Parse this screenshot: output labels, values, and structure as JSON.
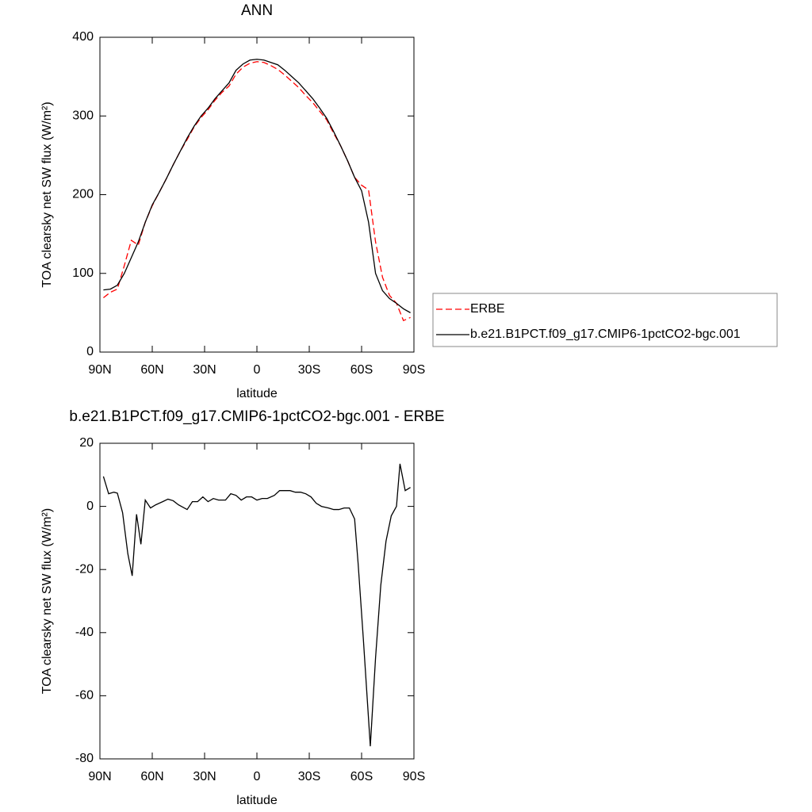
{
  "chart_data": [
    {
      "type": "line",
      "title": "ANN",
      "x_label": "latitude",
      "y_label": "TOA clearsky net SW flux (W/m²)",
      "x": [
        88,
        84,
        80,
        76,
        72,
        68,
        64,
        60,
        56,
        52,
        48,
        44,
        40,
        36,
        32,
        28,
        24,
        20,
        16,
        12,
        8,
        4,
        0,
        -4,
        -8,
        -12,
        -16,
        -20,
        -24,
        -28,
        -32,
        -36,
        -40,
        -44,
        -48,
        -52,
        -56,
        -60,
        -64,
        -68,
        -72,
        -76,
        -80,
        -84,
        -88
      ],
      "xlim": [
        90,
        -90
      ],
      "xticks": [
        {
          "value": 90,
          "label": "90N"
        },
        {
          "value": 60,
          "label": "60N"
        },
        {
          "value": 30,
          "label": "30N"
        },
        0,
        {
          "value": -30,
          "label": "30S"
        },
        {
          "value": -60,
          "label": "60S"
        },
        {
          "value": -90,
          "label": "90S"
        }
      ],
      "ylim": [
        0,
        400
      ],
      "yticks": [
        0,
        100,
        200,
        300,
        400
      ],
      "legend": "right",
      "series": [
        {
          "name": "ERBE",
          "color": "#ff0000",
          "dashed": true,
          "values": [
            69,
            76,
            80,
            110,
            142,
            136,
            165,
            186,
            203,
            220,
            238,
            255,
            270,
            286,
            298,
            308,
            320,
            330,
            338,
            353,
            362,
            367,
            369,
            368,
            364,
            359,
            352,
            344,
            336,
            326,
            317,
            306,
            295,
            278,
            262,
            243,
            222,
            212,
            206,
            140,
            95,
            72,
            62,
            40,
            44
          ]
        },
        {
          "name": "b.e21.B1PCT.f09_g17.CMIP6-1pctCO2-bgc.001",
          "color": "#000000",
          "dashed": false,
          "values": [
            79,
            80,
            85,
            100,
            120,
            140,
            165,
            187,
            203,
            220,
            238,
            255,
            272,
            287,
            300,
            310,
            322,
            332,
            342,
            358,
            366,
            371,
            372,
            371,
            368,
            365,
            358,
            350,
            342,
            332,
            322,
            310,
            297,
            280,
            262,
            243,
            222,
            205,
            165,
            100,
            78,
            68,
            62,
            55,
            50
          ]
        }
      ]
    },
    {
      "type": "line",
      "title": "b.e21.B1PCT.f09_g17.CMIP6-1pctCO2-bgc.001 - ERBE",
      "x_label": "latitude",
      "y_label": "TOA clearsky net SW flux (W/m²)",
      "x": [
        88,
        85,
        82,
        80,
        77,
        74,
        71.5,
        69,
        66.5,
        64,
        61,
        58,
        54,
        51,
        48,
        45,
        40,
        37,
        34,
        31,
        28,
        25,
        22,
        18,
        15,
        12,
        9,
        6,
        3,
        0,
        -3,
        -6,
        -10,
        -13,
        -16,
        -19,
        -22,
        -25,
        -28,
        -31,
        -34,
        -37,
        -41,
        -44,
        -47,
        -50,
        -53,
        -56,
        -58,
        -61,
        -65,
        -68,
        -71,
        -74,
        -77,
        -80,
        -82,
        -85,
        -88
      ],
      "xlim": [
        90,
        -90
      ],
      "xticks": [
        {
          "value": 90,
          "label": "90N"
        },
        {
          "value": 60,
          "label": "60N"
        },
        {
          "value": 30,
          "label": "30N"
        },
        0,
        {
          "value": -30,
          "label": "30S"
        },
        {
          "value": -60,
          "label": "60S"
        },
        {
          "value": -90,
          "label": "90S"
        }
      ],
      "ylim": [
        -80,
        20
      ],
      "yticks": [
        -80,
        -60,
        -40,
        -20,
        0,
        20
      ],
      "series": [
        {
          "color": "#000000",
          "dashed": false,
          "values": [
            9.5,
            4,
            4.5,
            4.2,
            -2,
            -15,
            -22,
            -2.5,
            -12,
            2,
            -0.5,
            0.5,
            1.5,
            2.3,
            1.8,
            0.5,
            -1,
            1.5,
            1.5,
            3,
            1.5,
            2.5,
            2,
            2,
            4,
            3.5,
            2,
            3,
            3,
            2,
            2.5,
            2.5,
            3.5,
            5,
            5,
            5,
            4.5,
            4.5,
            4,
            3,
            1,
            0,
            -0.5,
            -1,
            -1,
            -0.5,
            -0.5,
            -4,
            -18,
            -42,
            -76,
            -48,
            -25,
            -11,
            -3,
            0,
            13.5,
            5,
            6
          ]
        }
      ]
    }
  ]
}
